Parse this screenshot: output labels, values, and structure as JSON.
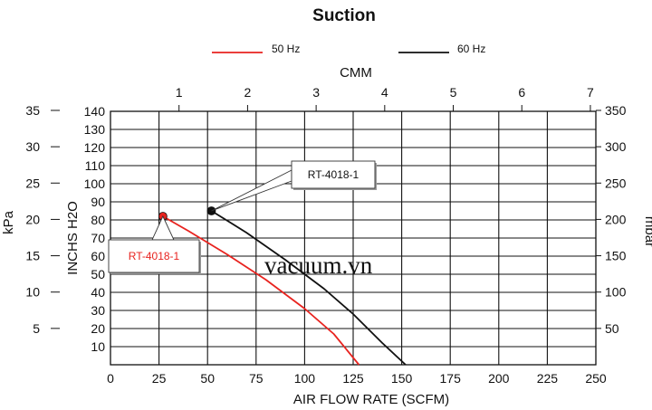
{
  "chart_data": {
    "type": "line",
    "title": "Suction",
    "xlabel": "AIR FLOW RATE (SCFM)",
    "xlim": [
      0,
      250
    ],
    "x_ticks": [
      "0",
      "25",
      "50",
      "75",
      "100",
      "125",
      "150",
      "175",
      "200",
      "225",
      "250"
    ],
    "top_axis": {
      "label": "CMM",
      "lim": [
        0,
        7.08
      ],
      "ticks": [
        "1",
        "2",
        "3",
        "4",
        "5",
        "6",
        "7"
      ]
    },
    "ylabel": "INCHS H2O",
    "ylim": [
      0,
      140
    ],
    "y_ticks": [
      "10",
      "20",
      "30",
      "40",
      "50",
      "60",
      "70",
      "80",
      "90",
      "100",
      "110",
      "120",
      "130",
      "140"
    ],
    "left_axis": {
      "label": "kPa",
      "ticks": [
        "5",
        "10",
        "15",
        "20",
        "25",
        "30",
        "35"
      ]
    },
    "right_axis": {
      "label": "mbar",
      "ticks": [
        "50",
        "100",
        "150",
        "200",
        "250",
        "300",
        "350"
      ]
    },
    "grid": true,
    "legend_position": "top",
    "series": [
      {
        "name": "50 Hz",
        "color": "#e8231f",
        "points": [
          [
            27,
            82
          ],
          [
            40,
            74
          ],
          [
            60,
            61
          ],
          [
            80,
            47
          ],
          [
            100,
            31
          ],
          [
            115,
            17
          ],
          [
            128,
            0
          ]
        ],
        "marker_point": [
          27,
          82
        ],
        "annotation": "RT-4018-1"
      },
      {
        "name": "60 Hz",
        "color": "#111111",
        "points": [
          [
            52,
            85
          ],
          [
            70,
            73
          ],
          [
            90,
            58
          ],
          [
            110,
            42
          ],
          [
            125,
            28
          ],
          [
            140,
            12
          ],
          [
            152,
            0
          ]
        ],
        "marker_point": [
          52,
          85
        ],
        "annotation": "RT-4018-1"
      }
    ]
  },
  "watermark": "vacuum.vn"
}
